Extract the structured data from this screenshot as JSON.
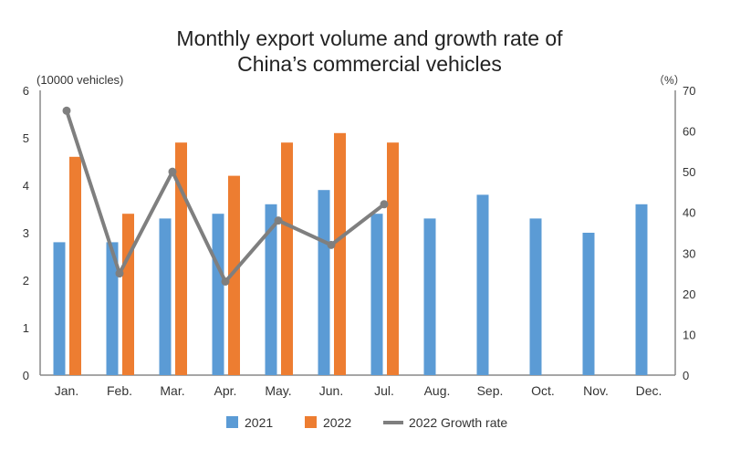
{
  "chart_data": {
    "type": "bar",
    "title": [
      "Monthly export volume and growth rate of",
      "China’s commercial vehicles"
    ],
    "ylabel": "(10000 vehicles)",
    "y2label": "（%）",
    "ylim": [
      0,
      6
    ],
    "y2lim": [
      0,
      70
    ],
    "yticks": [
      "0",
      "1",
      "2",
      "3",
      "4",
      "5",
      "6"
    ],
    "y2ticks": [
      "0",
      "10",
      "20",
      "30",
      "40",
      "50",
      "60",
      "70"
    ],
    "categories": [
      "Jan.",
      "Feb.",
      "Mar.",
      "Apr.",
      "May.",
      "Jun.",
      "Jul.",
      "Aug.",
      "Sep.",
      "Oct.",
      "Nov.",
      "Dec."
    ],
    "series": [
      {
        "name": "2021",
        "type": "bar",
        "axis": "left",
        "color": "#5b9bd5",
        "values": [
          2.8,
          2.8,
          3.3,
          3.4,
          3.6,
          3.9,
          3.4,
          3.3,
          3.8,
          3.3,
          3.0,
          3.6
        ]
      },
      {
        "name": "2022",
        "type": "bar",
        "axis": "left",
        "color": "#ed7d31",
        "values": [
          4.6,
          3.4,
          4.9,
          4.2,
          4.9,
          5.1,
          4.9,
          null,
          null,
          null,
          null,
          null
        ]
      },
      {
        "name": "2022 Growth rate",
        "type": "line",
        "axis": "right",
        "color": "#7f7f7f",
        "values": [
          65,
          25,
          50,
          23,
          38,
          32,
          42,
          null,
          null,
          null,
          null,
          null
        ]
      }
    ],
    "grid": false,
    "legend": "bottom"
  }
}
